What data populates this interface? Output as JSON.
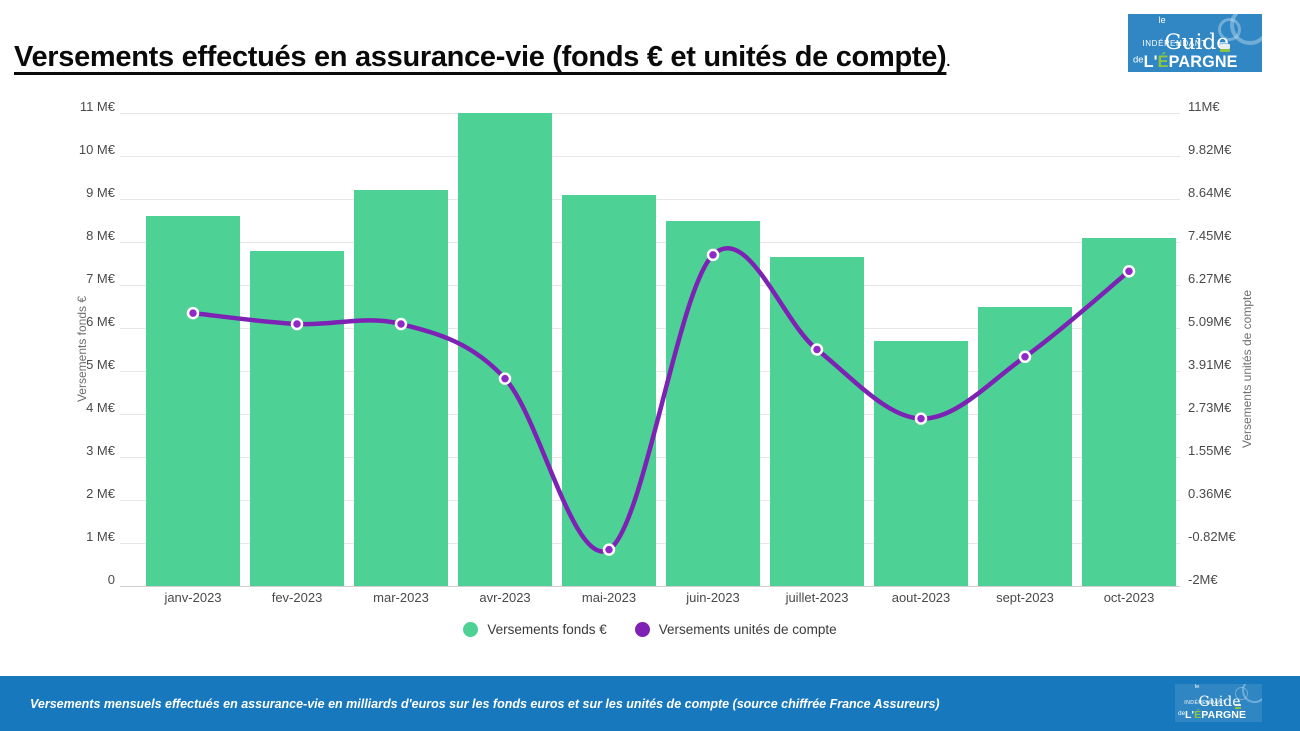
{
  "header": {
    "title": "Versements effectués en assurance-vie (fonds € et unités de compte)",
    "title_suffix": "."
  },
  "logo": {
    "le": "le",
    "guide": "Guide",
    "independant": "INDÉPENDANT",
    "de": "de",
    "epargne_prefix": "L'",
    "epargne_accent": "É",
    "epargne_suffix": "PARGNE"
  },
  "chart_data": {
    "type": "bar+line combo, dual y-axes",
    "categories": [
      "janv-2023",
      "fev-2023",
      "mar-2023",
      "avr-2023",
      "mai-2023",
      "juin-2023",
      "juillet-2023",
      "aout-2023",
      "sept-2023",
      "oct-2023"
    ],
    "series": [
      {
        "name": "Versements fonds €",
        "type": "bar",
        "axis": "left",
        "color": "#4dd195",
        "values": [
          8.6,
          7.8,
          9.2,
          11.0,
          9.1,
          8.5,
          7.65,
          5.7,
          6.5,
          8.1
        ]
      },
      {
        "name": "Versements unités de compte",
        "type": "line",
        "axis": "right",
        "color": "#7d22b5",
        "point_color": "#9129c9",
        "values": [
          5.5,
          5.2,
          5.2,
          3.7,
          -1.0,
          7.1,
          4.5,
          2.6,
          4.3,
          6.65
        ]
      }
    ],
    "left_axis": {
      "label": "Versements fonds €",
      "min": 0,
      "max": 11,
      "ticks": [
        "0",
        "1 M€",
        "2 M€",
        "3 M€",
        "4 M€",
        "5 M€",
        "6 M€",
        "7 M€",
        "8 M€",
        "9 M€",
        "10 M€",
        "11 M€"
      ]
    },
    "right_axis": {
      "label": "Versements unités de compte",
      "min": -2,
      "max": 11,
      "ticks": [
        "-2M€",
        "-0.82M€",
        "0.36M€",
        "1.55M€",
        "2.73M€",
        "3.91M€",
        "5.09M€",
        "6.27M€",
        "7.45M€",
        "8.64M€",
        "9.82M€",
        "11M€"
      ]
    },
    "grid": true,
    "legend_position": "bottom",
    "units": "milliards d'euros"
  },
  "legend": {
    "items": [
      {
        "label": "Versements fonds €",
        "color": "#4dd195"
      },
      {
        "label": "Versements unités de compte",
        "color": "#7d22b5"
      }
    ]
  },
  "footer": {
    "caption": "Versements mensuels effectués en assurance-vie en milliards d'euros sur les fonds euros et sur les unités de compte (source chiffrée France Assureurs)"
  }
}
